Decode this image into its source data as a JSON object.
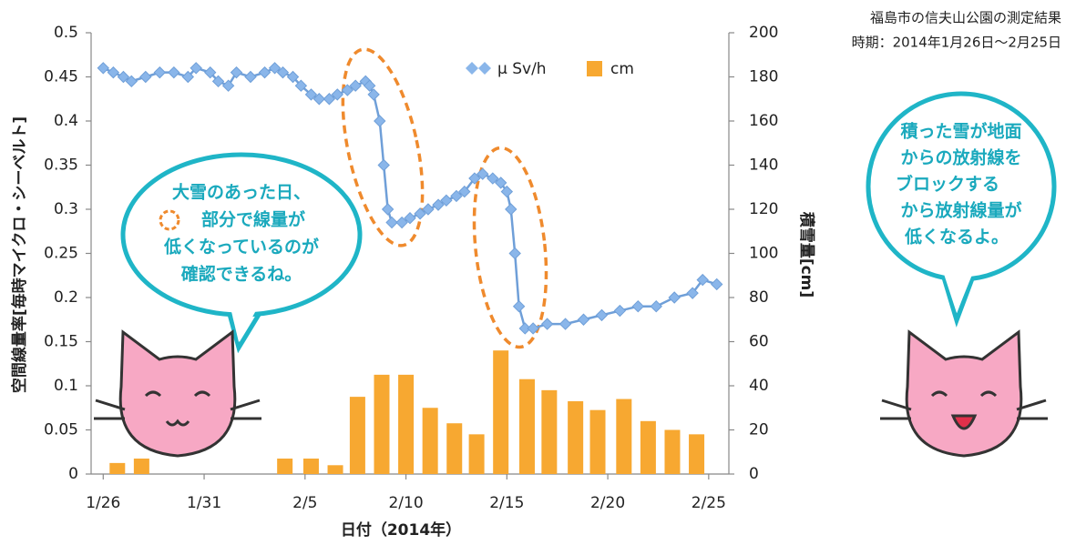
{
  "chart_data": {
    "type": "combo",
    "notes": [
      "福島市の信夫山公園の測定結果",
      "時期：2014年1月26日～2月25日"
    ],
    "xlabel": "日付（2014年）",
    "ylabel": "空間線量率[毎時マイクロ・シーベルト]",
    "y2label": "積雪量[cm]",
    "xlim": [
      -0.6,
      31
    ],
    "xticks": [
      {
        "value": 0,
        "label": "1/26"
      },
      {
        "value": 5,
        "label": "1/31"
      },
      {
        "value": 10,
        "label": "2/5"
      },
      {
        "value": 15,
        "label": "2/10"
      },
      {
        "value": 20,
        "label": "2/15"
      },
      {
        "value": 25,
        "label": "2/20"
      },
      {
        "value": 30,
        "label": "2/25"
      }
    ],
    "ylim": [
      0,
      0.5
    ],
    "yticks": [
      0,
      0.05,
      0.1,
      0.15,
      0.2,
      0.25,
      0.3,
      0.35,
      0.4,
      0.45,
      0.5
    ],
    "y2lim": [
      0,
      200
    ],
    "y2ticks": [
      0,
      20,
      40,
      60,
      80,
      100,
      120,
      140,
      160,
      180,
      200
    ],
    "series": [
      {
        "name": "μ Sv/h",
        "type": "line",
        "color": "#6f9fd8",
        "x": [
          0,
          0.5,
          1.0,
          1.4,
          2.1,
          2.8,
          3.5,
          4.2,
          4.6,
          5.3,
          5.7,
          6.2,
          6.6,
          7.3,
          8.0,
          8.5,
          8.9,
          9.4,
          9.8,
          10.3,
          10.7,
          11.2,
          11.6,
          12.1,
          12.5,
          13.0,
          13.2,
          13.4,
          13.7,
          13.9,
          14.1,
          14.3,
          14.8,
          15.2,
          15.7,
          16.1,
          16.6,
          17.0,
          17.5,
          17.9,
          18.4,
          18.8,
          19.3,
          19.7,
          20.0,
          20.2,
          20.4,
          20.6,
          20.9,
          21.3,
          22.0,
          22.9,
          23.8,
          24.7,
          25.6,
          26.5,
          27.4,
          28.3,
          29.2,
          29.7,
          30.4
        ],
        "values": [
          0.46,
          0.455,
          0.45,
          0.445,
          0.45,
          0.455,
          0.455,
          0.45,
          0.46,
          0.455,
          0.445,
          0.44,
          0.455,
          0.45,
          0.455,
          0.46,
          0.455,
          0.45,
          0.44,
          0.43,
          0.425,
          0.425,
          0.43,
          0.435,
          0.44,
          0.445,
          0.44,
          0.43,
          0.4,
          0.35,
          0.3,
          0.285,
          0.285,
          0.29,
          0.295,
          0.3,
          0.305,
          0.31,
          0.315,
          0.32,
          0.335,
          0.34,
          0.335,
          0.33,
          0.32,
          0.3,
          0.25,
          0.19,
          0.165,
          0.165,
          0.17,
          0.17,
          0.175,
          0.18,
          0.185,
          0.19,
          0.19,
          0.2,
          0.205,
          0.22,
          0.215
        ]
      },
      {
        "name": "cm",
        "type": "bar",
        "axis": "y2",
        "color": "#f7a831",
        "x": [
          0.7,
          1.9,
          9.0,
          10.3,
          11.5,
          12.6,
          13.8,
          15.0,
          16.2,
          17.4,
          18.5,
          19.7,
          21.0,
          22.1,
          23.4,
          24.5,
          25.8,
          27.0,
          28.2,
          29.4
        ],
        "values": [
          5,
          7,
          7,
          7,
          4,
          35,
          45,
          45,
          30,
          23,
          18,
          56,
          43,
          38,
          33,
          29,
          34,
          24,
          20,
          18
        ]
      }
    ],
    "legend": "top",
    "annotations": {
      "left_bubble": [
        "大雪のあった日、",
        "部分で線量が",
        "低くなっているのが",
        "確認できるね。"
      ],
      "right_bubble": [
        "積った雪が地面",
        "からの放射線を",
        "ブロックする",
        "から放射線量が",
        "低くなるよ。"
      ]
    }
  }
}
